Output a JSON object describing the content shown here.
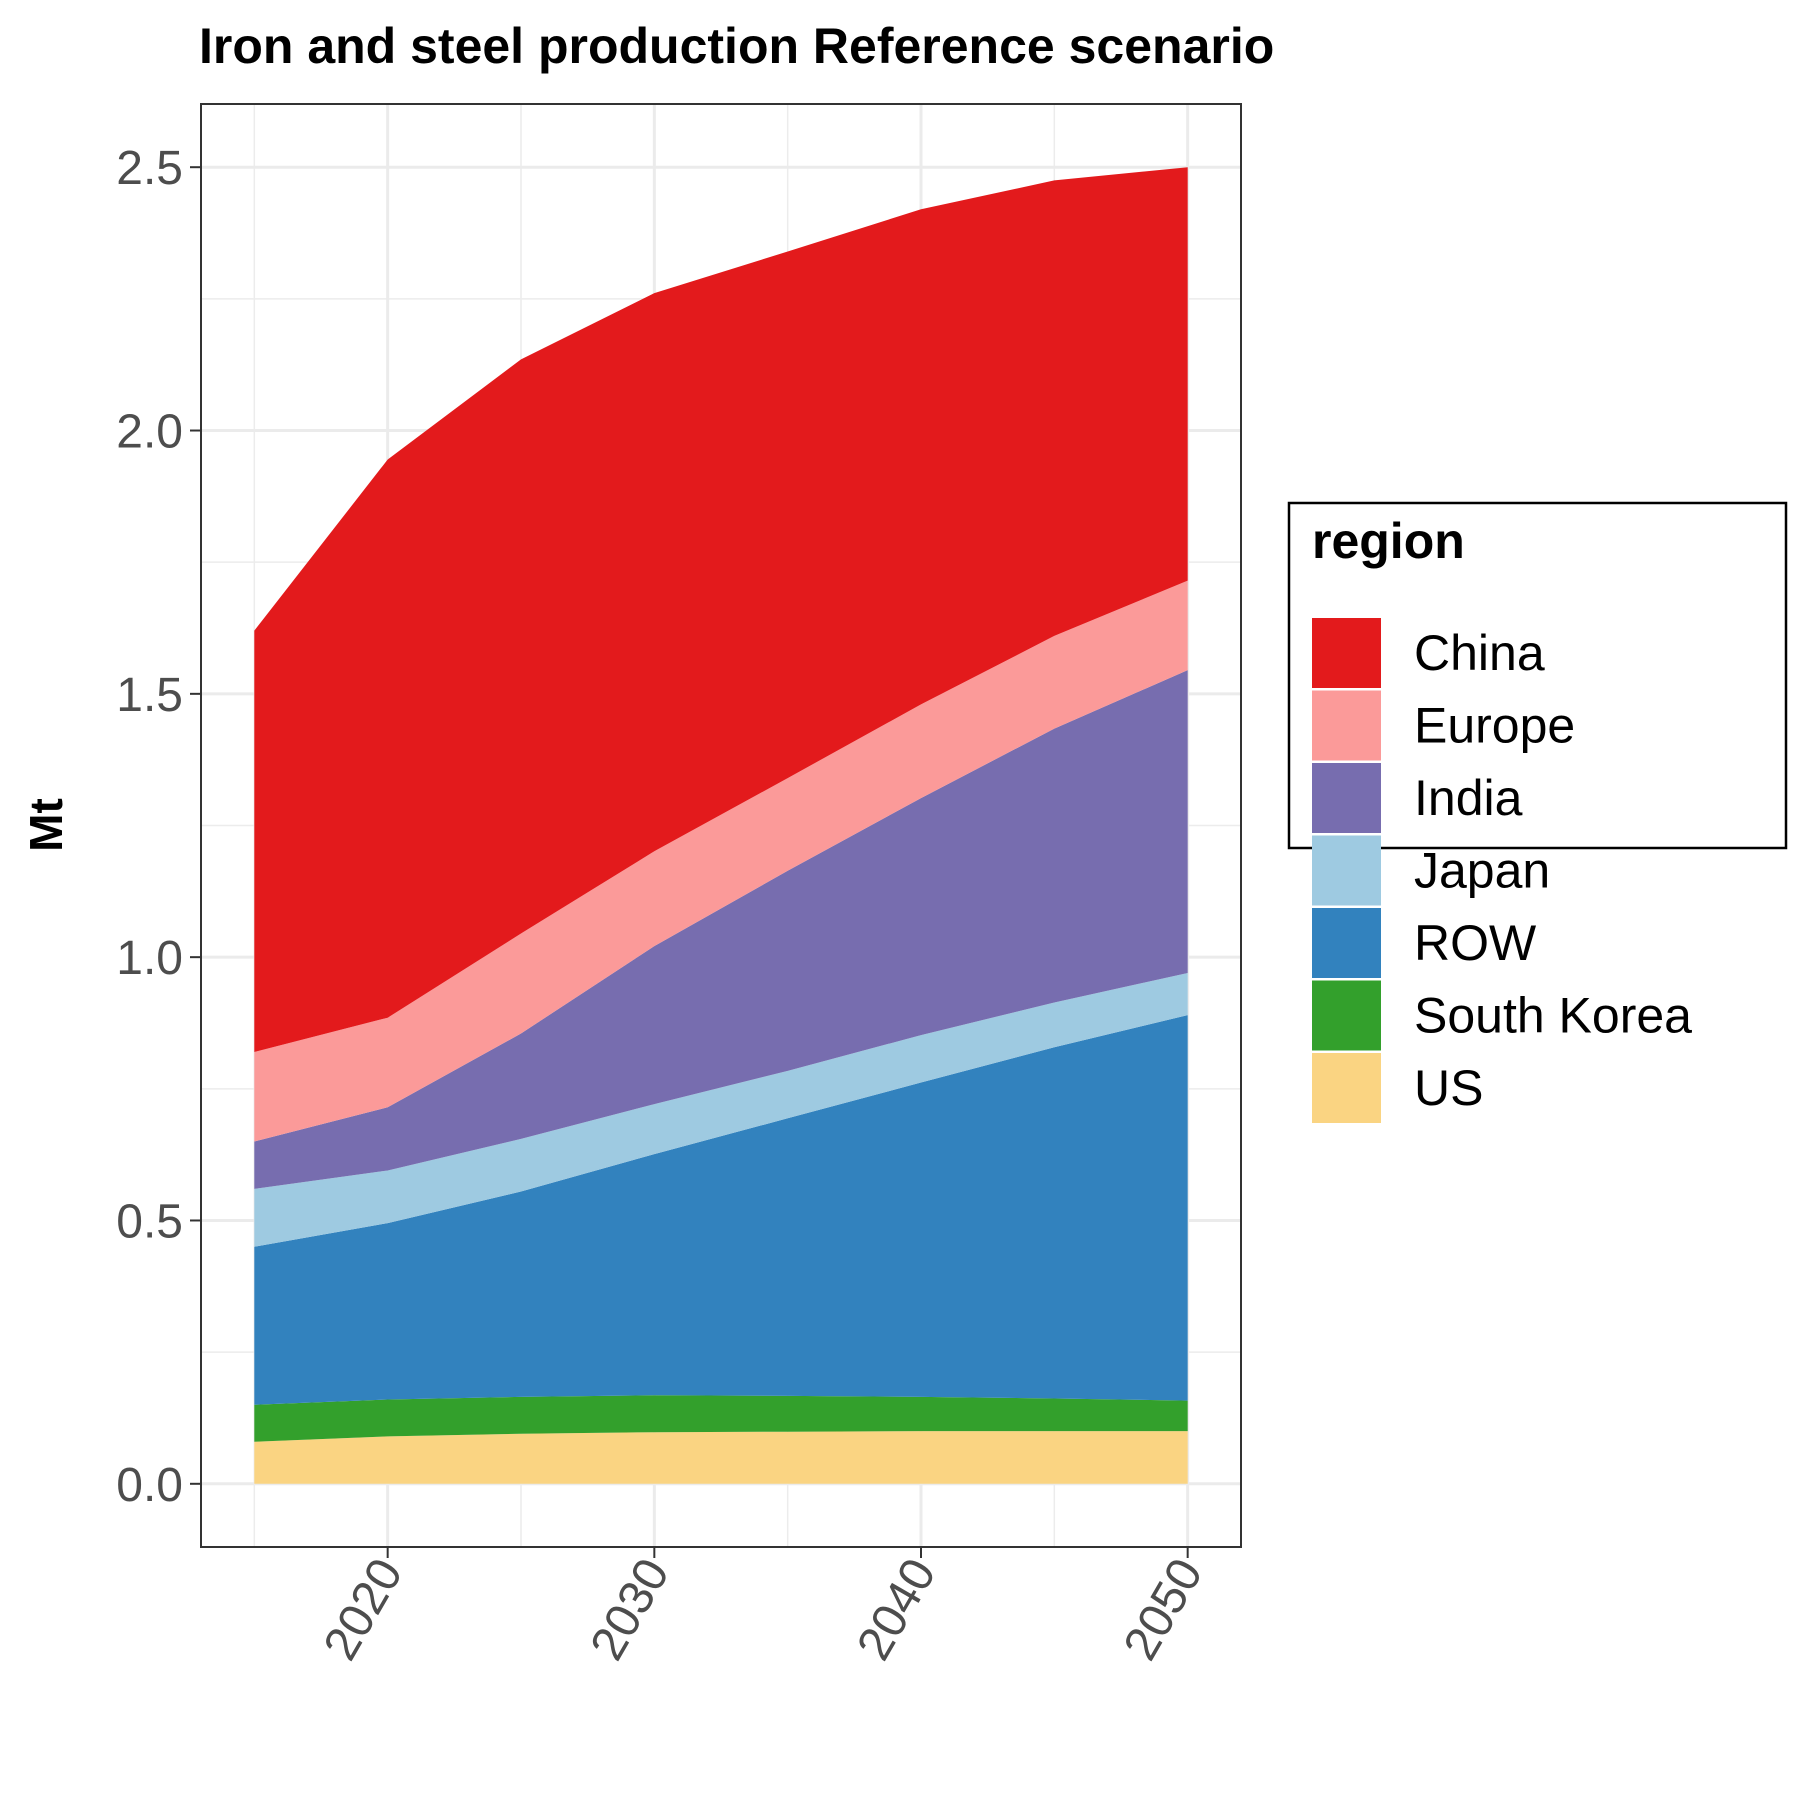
{
  "chart_data": {
    "type": "area",
    "stacked": true,
    "title": "Iron and steel production Reference scenario",
    "xlabel": "",
    "ylabel": "Mt",
    "x": [
      2015,
      2020,
      2025,
      2030,
      2035,
      2040,
      2045,
      2050
    ],
    "xlim": [
      2013,
      2052
    ],
    "ylim": [
      -0.12,
      2.62
    ],
    "xticks": [
      2020,
      2030,
      2040,
      2050
    ],
    "yticks": [
      0.0,
      0.5,
      1.0,
      1.5,
      2.0,
      2.5
    ],
    "ytick_labels": [
      "0.0",
      "0.5",
      "1.0",
      "1.5",
      "2.0",
      "2.5"
    ],
    "xtick_labels": [
      "2020",
      "2030",
      "2040",
      "2050"
    ],
    "grid": true,
    "legend": {
      "title": "region",
      "placement": "right"
    },
    "series": [
      {
        "name": "US",
        "color": "#fad482",
        "values": [
          0.08,
          0.09,
          0.095,
          0.098,
          0.099,
          0.1,
          0.1,
          0.1
        ]
      },
      {
        "name": "South Korea",
        "color": "#33a02c",
        "values": [
          0.07,
          0.07,
          0.07,
          0.07,
          0.068,
          0.065,
          0.062,
          0.058
        ]
      },
      {
        "name": "ROW",
        "color": "#3282be",
        "values": [
          0.3,
          0.335,
          0.39,
          0.458,
          0.527,
          0.597,
          0.667,
          0.732
        ]
      },
      {
        "name": "Japan",
        "color": "#9ecae1",
        "values": [
          0.11,
          0.1,
          0.1,
          0.095,
          0.09,
          0.09,
          0.085,
          0.08
        ]
      },
      {
        "name": "India",
        "color": "#776daf",
        "values": [
          0.09,
          0.12,
          0.2,
          0.3,
          0.38,
          0.45,
          0.52,
          0.575
        ]
      },
      {
        "name": "Europe",
        "color": "#fb9a99",
        "values": [
          0.17,
          0.17,
          0.19,
          0.18,
          0.176,
          0.178,
          0.176,
          0.17
        ]
      },
      {
        "name": "China",
        "color": "#e31a1c",
        "values": [
          0.8,
          1.06,
          1.09,
          1.06,
          1.0,
          0.94,
          0.865,
          0.785
        ]
      }
    ]
  }
}
